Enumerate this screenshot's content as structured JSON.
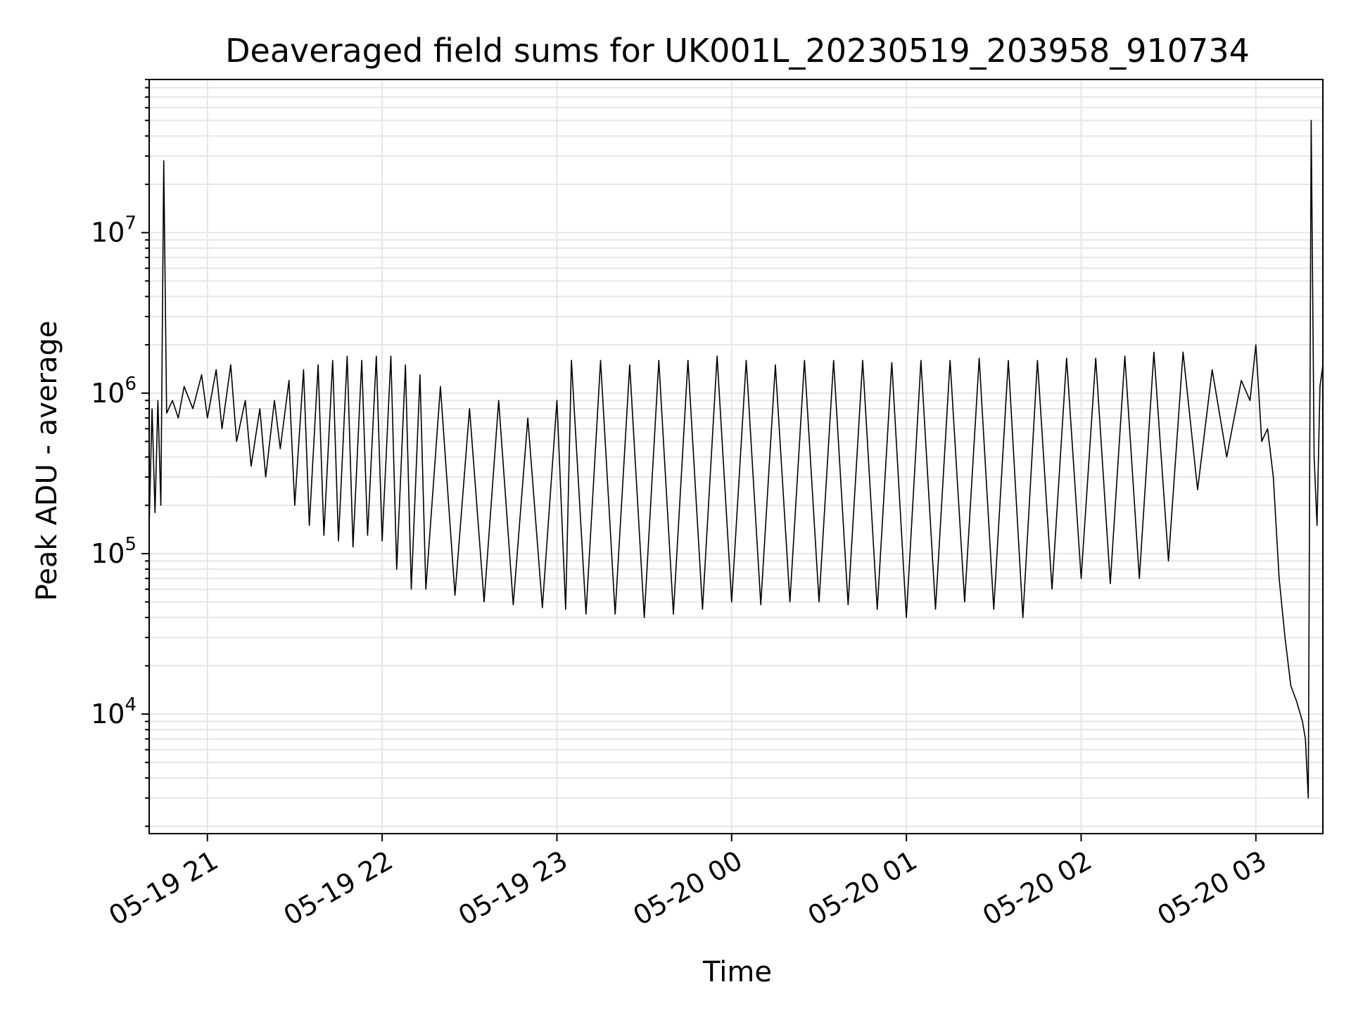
{
  "chart_data": {
    "type": "line",
    "title": "Deaveraged field sums for UK001L_20230519_203958_910734",
    "xlabel": "Time",
    "ylabel": "Peak ADU - average",
    "y_scale": "log",
    "ylim": [
      1800,
      90000000
    ],
    "xlim": [
      "05-19 20:40",
      "05-20 03:23"
    ],
    "grid": true,
    "line_color": "#000000",
    "grid_color": "#e6e6e6",
    "x_ticks": [
      {
        "time": "05-19 21:00",
        "label": "05-19 21"
      },
      {
        "time": "05-19 22:00",
        "label": "05-19 22"
      },
      {
        "time": "05-19 23:00",
        "label": "05-19 23"
      },
      {
        "time": "05-20 00:00",
        "label": "05-20 00"
      },
      {
        "time": "05-20 01:00",
        "label": "05-20 01"
      },
      {
        "time": "05-20 02:00",
        "label": "05-20 02"
      },
      {
        "time": "05-20 03:00",
        "label": "05-20 03"
      }
    ],
    "y_ticks": [
      {
        "value": 10000,
        "base": "10",
        "exp": "4"
      },
      {
        "value": 100000,
        "base": "10",
        "exp": "5"
      },
      {
        "value": 1000000,
        "base": "10",
        "exp": "6"
      },
      {
        "value": 10000000,
        "base": "10",
        "exp": "7"
      }
    ],
    "series": [
      {
        "x": [
          "05-19 20:40",
          "05-19 20:41",
          "05-19 20:42",
          "05-19 20:43",
          "05-19 20:44",
          "05-19 20:45",
          "05-19 20:46",
          "05-19 20:48",
          "05-19 20:50",
          "05-19 20:52",
          "05-19 20:55",
          "05-19 20:58",
          "05-19 21:00",
          "05-19 21:03",
          "05-19 21:05",
          "05-19 21:08",
          "05-19 21:10",
          "05-19 21:13",
          "05-19 21:15",
          "05-19 21:18",
          "05-19 21:20",
          "05-19 21:23",
          "05-19 21:25",
          "05-19 21:28",
          "05-19 21:30",
          "05-19 21:33",
          "05-19 21:35",
          "05-19 21:38",
          "05-19 21:40",
          "05-19 21:43",
          "05-19 21:45",
          "05-19 21:48",
          "05-19 21:50",
          "05-19 21:53",
          "05-19 21:55",
          "05-19 21:58",
          "05-19 22:00",
          "05-19 22:03",
          "05-19 22:05",
          "05-19 22:08",
          "05-19 22:10",
          "05-19 22:13",
          "05-19 22:15",
          "05-19 22:20",
          "05-19 22:25",
          "05-19 22:30",
          "05-19 22:35",
          "05-19 22:40",
          "05-19 22:45",
          "05-19 22:50",
          "05-19 22:55",
          "05-19 23:00",
          "05-19 23:03",
          "05-19 23:05",
          "05-19 23:10",
          "05-19 23:15",
          "05-19 23:20",
          "05-19 23:25",
          "05-19 23:30",
          "05-19 23:35",
          "05-19 23:40",
          "05-19 23:45",
          "05-19 23:50",
          "05-19 23:55",
          "05-20 00:00",
          "05-20 00:05",
          "05-20 00:10",
          "05-20 00:15",
          "05-20 00:20",
          "05-20 00:25",
          "05-20 00:30",
          "05-20 00:35",
          "05-20 00:40",
          "05-20 00:45",
          "05-20 00:50",
          "05-20 00:55",
          "05-20 01:00",
          "05-20 01:05",
          "05-20 01:10",
          "05-20 01:15",
          "05-20 01:20",
          "05-20 01:25",
          "05-20 01:30",
          "05-20 01:35",
          "05-20 01:40",
          "05-20 01:45",
          "05-20 01:50",
          "05-20 01:55",
          "05-20 02:00",
          "05-20 02:05",
          "05-20 02:10",
          "05-20 02:15",
          "05-20 02:20",
          "05-20 02:25",
          "05-20 02:30",
          "05-20 02:35",
          "05-20 02:40",
          "05-20 02:45",
          "05-20 02:50",
          "05-20 02:55",
          "05-20 02:58",
          "05-20 03:00",
          "05-20 03:02",
          "05-20 03:04",
          "05-20 03:06",
          "05-20 03:08",
          "05-20 03:10",
          "05-20 03:12",
          "05-20 03:14",
          "05-20 03:16",
          "05-20 03:17",
          "05-20 03:18",
          "05-20 03:19",
          "05-20 03:20",
          "05-20 03:21",
          "05-20 03:22",
          "05-20 03:23"
        ],
        "y": [
          150000,
          800000,
          180000,
          900000,
          200000,
          28000000,
          750000,
          900000,
          700000,
          1100000,
          800000,
          1300000,
          700000,
          1400000,
          600000,
          1500000,
          500000,
          900000,
          350000,
          800000,
          300000,
          900000,
          450000,
          1200000,
          200000,
          1400000,
          150000,
          1500000,
          130000,
          1600000,
          120000,
          1700000,
          110000,
          1600000,
          130000,
          1700000,
          120000,
          1700000,
          80000,
          1500000,
          60000,
          1300000,
          60000,
          1100000,
          55000,
          800000,
          50000,
          900000,
          48000,
          700000,
          46000,
          900000,
          45000,
          1600000,
          42000,
          1600000,
          42000,
          1500000,
          40000,
          1600000,
          42000,
          1600000,
          45000,
          1700000,
          50000,
          1600000,
          48000,
          1500000,
          50000,
          1600000,
          50000,
          1600000,
          48000,
          1600000,
          45000,
          1550000,
          40000,
          1600000,
          45000,
          1600000,
          50000,
          1650000,
          45000,
          1600000,
          40000,
          1600000,
          60000,
          1650000,
          70000,
          1650000,
          65000,
          1700000,
          70000,
          1800000,
          90000,
          1800000,
          250000,
          1400000,
          400000,
          1200000,
          900000,
          2000000,
          500000,
          600000,
          300000,
          70000,
          30000,
          15000,
          12000,
          9000,
          7000,
          3000,
          50000000,
          400000,
          150000,
          1100000,
          1500000
        ]
      }
    ]
  }
}
